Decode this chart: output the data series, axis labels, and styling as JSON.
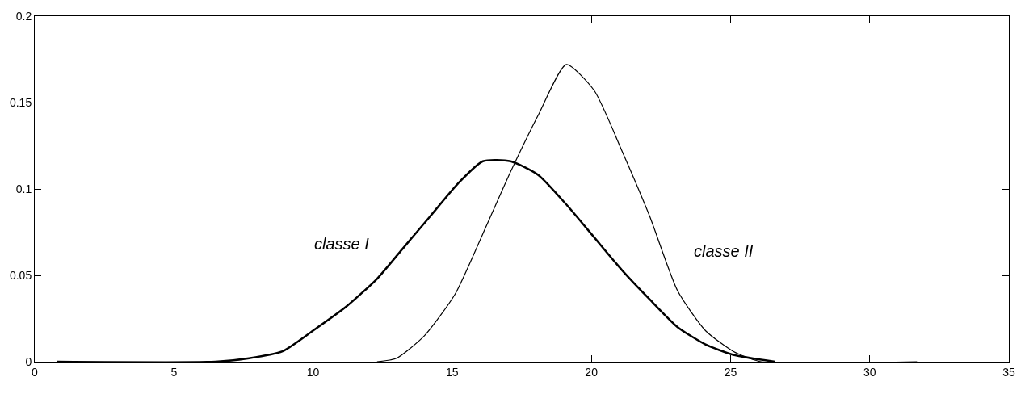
{
  "chart_data": {
    "type": "line",
    "xlim": [
      0,
      35
    ],
    "xticks": [
      0,
      5,
      10,
      15,
      20,
      25,
      30,
      35
    ],
    "ylim": [
      0,
      0.2
    ],
    "yticks": [
      0,
      0.05,
      0.1,
      0.15,
      0.2
    ],
    "legend": false,
    "marker": "none",
    "line_style": "solid",
    "series": [
      {
        "color": "#000000",
        "x": [
          0.8,
          6.5,
          7.7,
          8.9,
          10.0,
          11.2,
          12.3,
          13.2,
          14.2,
          15.2,
          16.1,
          17.1,
          18.1,
          19.1,
          20.1,
          21.1,
          22.1,
          23.1,
          24.1,
          25.1,
          26.6
        ],
        "values": [
          0,
          0,
          0.002,
          0.006,
          0.018,
          0.032,
          0.048,
          0.065,
          0.084,
          0.103,
          0.116,
          0.116,
          0.108,
          0.091,
          0.072,
          0.053,
          0.036,
          0.02,
          0.01,
          0.004,
          0
        ]
      },
      {
        "color": "#000000",
        "x": [
          12.3,
          13.0,
          14.0,
          15.1,
          16.1,
          17.1,
          18.1,
          19.1,
          20.1,
          21.1,
          22.1,
          23.1,
          24.1,
          25.1,
          26.1,
          31.7
        ],
        "values": [
          0,
          0.002,
          0.015,
          0.039,
          0.074,
          0.11,
          0.143,
          0.172,
          0.157,
          0.122,
          0.084,
          0.041,
          0.018,
          0.006,
          0,
          0
        ]
      }
    ],
    "annotations": [
      "classe I",
      "classe II"
    ]
  }
}
